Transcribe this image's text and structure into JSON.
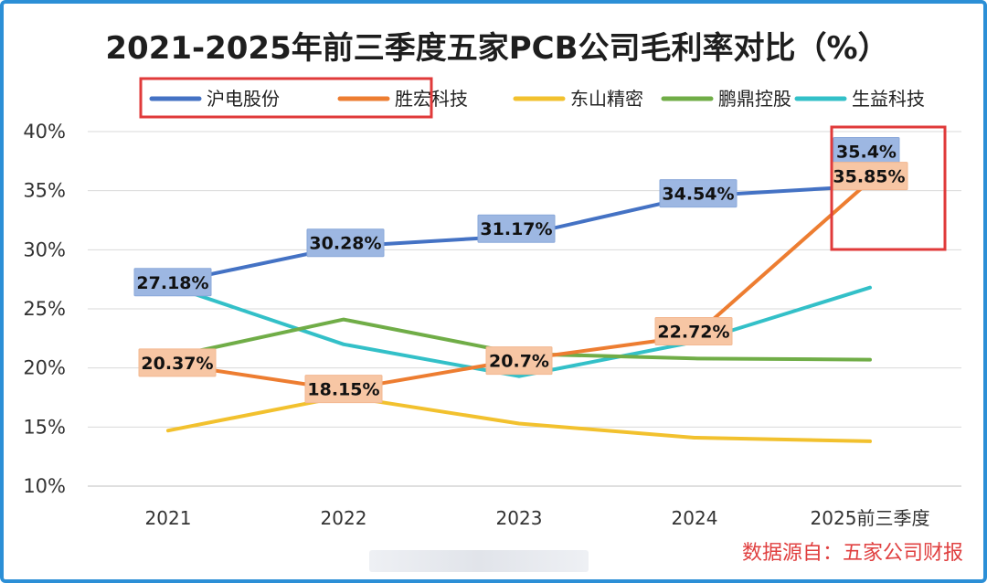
{
  "chart_data": {
    "type": "line",
    "title": "2021-2025年前三季度五家PCB公司毛利率对比（%）",
    "categories": [
      "2021",
      "2022",
      "2023",
      "2024",
      "2025前三季度"
    ],
    "ylim": [
      10,
      40
    ],
    "yticks": [
      "10%",
      "15%",
      "20%",
      "25%",
      "30%",
      "35%",
      "40%"
    ],
    "grid": true,
    "legend_position": "top",
    "series": [
      {
        "name": "沪电股份",
        "color": "#4472c4",
        "values": [
          27.18,
          30.28,
          31.17,
          34.54,
          35.4
        ],
        "labels": [
          "27.18%",
          "30.28%",
          "31.17%",
          "34.54%",
          "35.4%"
        ]
      },
      {
        "name": "胜宏科技",
        "color": "#ed7d31",
        "values": [
          20.37,
          18.15,
          20.7,
          22.72,
          35.85
        ],
        "labels": [
          "20.37%",
          "18.15%",
          "20.7%",
          "22.72%",
          "35.85%"
        ]
      },
      {
        "name": "东山精密",
        "color": "#f2c12e",
        "values": [
          14.7,
          17.6,
          15.3,
          14.1,
          13.8
        ],
        "labels": []
      },
      {
        "name": "鹏鼎控股",
        "color": "#70ad47",
        "values": [
          20.9,
          24.1,
          21.2,
          20.8,
          20.7
        ],
        "labels": []
      },
      {
        "name": "生益科技",
        "color": "#33c0c8",
        "values": [
          27.0,
          22.0,
          19.3,
          22.2,
          26.8
        ],
        "labels": []
      }
    ],
    "source": "数据源自：五家公司财报",
    "highlight_color": "#e03a3a"
  }
}
